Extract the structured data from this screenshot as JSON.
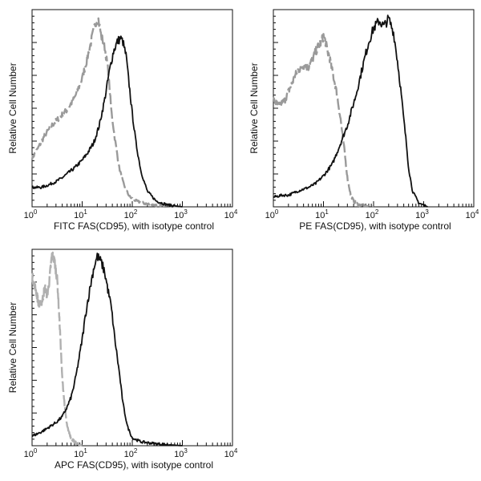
{
  "chart_data": [
    {
      "type": "line",
      "title": "",
      "xlabel": "FITC FAS(CD95),  with isotype control",
      "ylabel": "Relative Cell Number",
      "x_scale": "log",
      "xlim": [
        1,
        10000
      ],
      "ylim": [
        0,
        1
      ],
      "x_tick_labels": [
        "10",
        "10",
        "10",
        "10",
        "10"
      ],
      "x_tick_exponents": [
        "0",
        "1",
        "2",
        "3",
        "4"
      ],
      "x_tick_values": [
        1,
        10,
        100,
        1000,
        10000
      ],
      "grid": false,
      "series": [
        {
          "color": "#9a9a9a",
          "dash": "dashed",
          "x": [
            1,
            1.3,
            1.8,
            2.5,
            3.5,
            5,
            7,
            10,
            13,
            16,
            19,
            21,
            24,
            28,
            33,
            38,
            45,
            55,
            70,
            90,
            120,
            160,
            250,
            1000
          ],
          "y": [
            0.25,
            0.3,
            0.37,
            0.42,
            0.46,
            0.5,
            0.56,
            0.66,
            0.78,
            0.88,
            0.96,
            0.97,
            0.88,
            0.83,
            0.7,
            0.5,
            0.35,
            0.2,
            0.1,
            0.05,
            0.03,
            0.02,
            0.01,
            0.0
          ]
        },
        {
          "color": "#111111",
          "dash": "solid",
          "x": [
            1,
            1.5,
            2,
            3,
            4,
            5,
            7,
            10,
            13,
            17,
            22,
            28,
            35,
            42,
            50,
            58,
            65,
            75,
            85,
            100,
            120,
            150,
            200,
            300,
            500,
            1000
          ],
          "y": [
            0.1,
            0.1,
            0.11,
            0.13,
            0.15,
            0.17,
            0.2,
            0.24,
            0.28,
            0.33,
            0.42,
            0.55,
            0.7,
            0.8,
            0.85,
            0.87,
            0.85,
            0.78,
            0.65,
            0.48,
            0.32,
            0.18,
            0.08,
            0.03,
            0.01,
            0.0
          ]
        }
      ]
    },
    {
      "type": "line",
      "title": "",
      "xlabel": "PE FAS(CD95),  with isotype control",
      "ylabel": "Relative Cell Number",
      "x_scale": "log",
      "xlim": [
        1,
        10000
      ],
      "ylim": [
        0,
        1
      ],
      "x_tick_labels": [
        "10",
        "10",
        "10",
        "10",
        "10"
      ],
      "x_tick_exponents": [
        "0",
        "1",
        "2",
        "3",
        "4"
      ],
      "x_tick_values": [
        1,
        10,
        100,
        1000,
        10000
      ],
      "grid": false,
      "series": [
        {
          "color": "#9a9a9a",
          "dash": "dashed",
          "x": [
            1,
            1.3,
            1.7,
            2.2,
            3,
            4,
            5,
            6,
            7,
            8,
            9,
            10,
            11,
            12,
            13,
            15,
            18,
            22,
            26,
            30,
            35,
            40,
            50,
            100
          ],
          "y": [
            0.55,
            0.52,
            0.55,
            0.62,
            0.7,
            0.73,
            0.72,
            0.76,
            0.8,
            0.83,
            0.85,
            0.88,
            0.85,
            0.8,
            0.78,
            0.7,
            0.6,
            0.45,
            0.3,
            0.15,
            0.06,
            0.03,
            0.01,
            0.0
          ]
        },
        {
          "color": "#111111",
          "dash": "solid",
          "x": [
            1,
            1.5,
            2,
            3,
            5,
            7,
            10,
            15,
            20,
            30,
            45,
            60,
            80,
            100,
            130,
            160,
            200,
            250,
            300,
            350,
            400,
            450,
            500,
            600,
            800,
            1200
          ],
          "y": [
            0.05,
            0.06,
            0.06,
            0.08,
            0.1,
            0.12,
            0.16,
            0.22,
            0.3,
            0.42,
            0.58,
            0.72,
            0.85,
            0.92,
            0.96,
            0.93,
            0.97,
            0.9,
            0.75,
            0.6,
            0.45,
            0.33,
            0.2,
            0.08,
            0.02,
            0.0
          ]
        }
      ]
    },
    {
      "type": "line",
      "title": "",
      "xlabel": "APC FAS(CD95), with isotype control",
      "ylabel": "Relative Cell Number",
      "x_scale": "log",
      "xlim": [
        1,
        10000
      ],
      "ylim": [
        0,
        1
      ],
      "x_tick_labels": [
        "10",
        "10",
        "10",
        "10",
        "10"
      ],
      "x_tick_exponents": [
        "0",
        "1",
        "2",
        "3",
        "4"
      ],
      "x_tick_values": [
        1,
        10,
        100,
        1000,
        10000
      ],
      "grid": false,
      "series": [
        {
          "color": "#b0b0b0",
          "dash": "dashed",
          "x": [
            1,
            1.2,
            1.4,
            1.6,
            1.8,
            2,
            2.2,
            2.5,
            2.8,
            3.2,
            3.6,
            4,
            4.5,
            5,
            6,
            7,
            8,
            10
          ],
          "y": [
            0.88,
            0.8,
            0.72,
            0.75,
            0.82,
            0.78,
            0.85,
            0.99,
            0.96,
            0.85,
            0.6,
            0.35,
            0.2,
            0.1,
            0.04,
            0.02,
            0.01,
            0.0
          ]
        },
        {
          "color": "#111111",
          "dash": "solid",
          "x": [
            1,
            1.5,
            2,
            3,
            4,
            5,
            6,
            7,
            8,
            10,
            12,
            14,
            17,
            20,
            24,
            28,
            33,
            38,
            45,
            55,
            65,
            80,
            100,
            150,
            300,
            1000
          ],
          "y": [
            0.05,
            0.07,
            0.09,
            0.12,
            0.15,
            0.2,
            0.25,
            0.32,
            0.4,
            0.55,
            0.7,
            0.8,
            0.92,
            0.98,
            0.95,
            0.9,
            0.8,
            0.72,
            0.55,
            0.38,
            0.22,
            0.1,
            0.04,
            0.02,
            0.01,
            0.0
          ]
        }
      ]
    }
  ]
}
